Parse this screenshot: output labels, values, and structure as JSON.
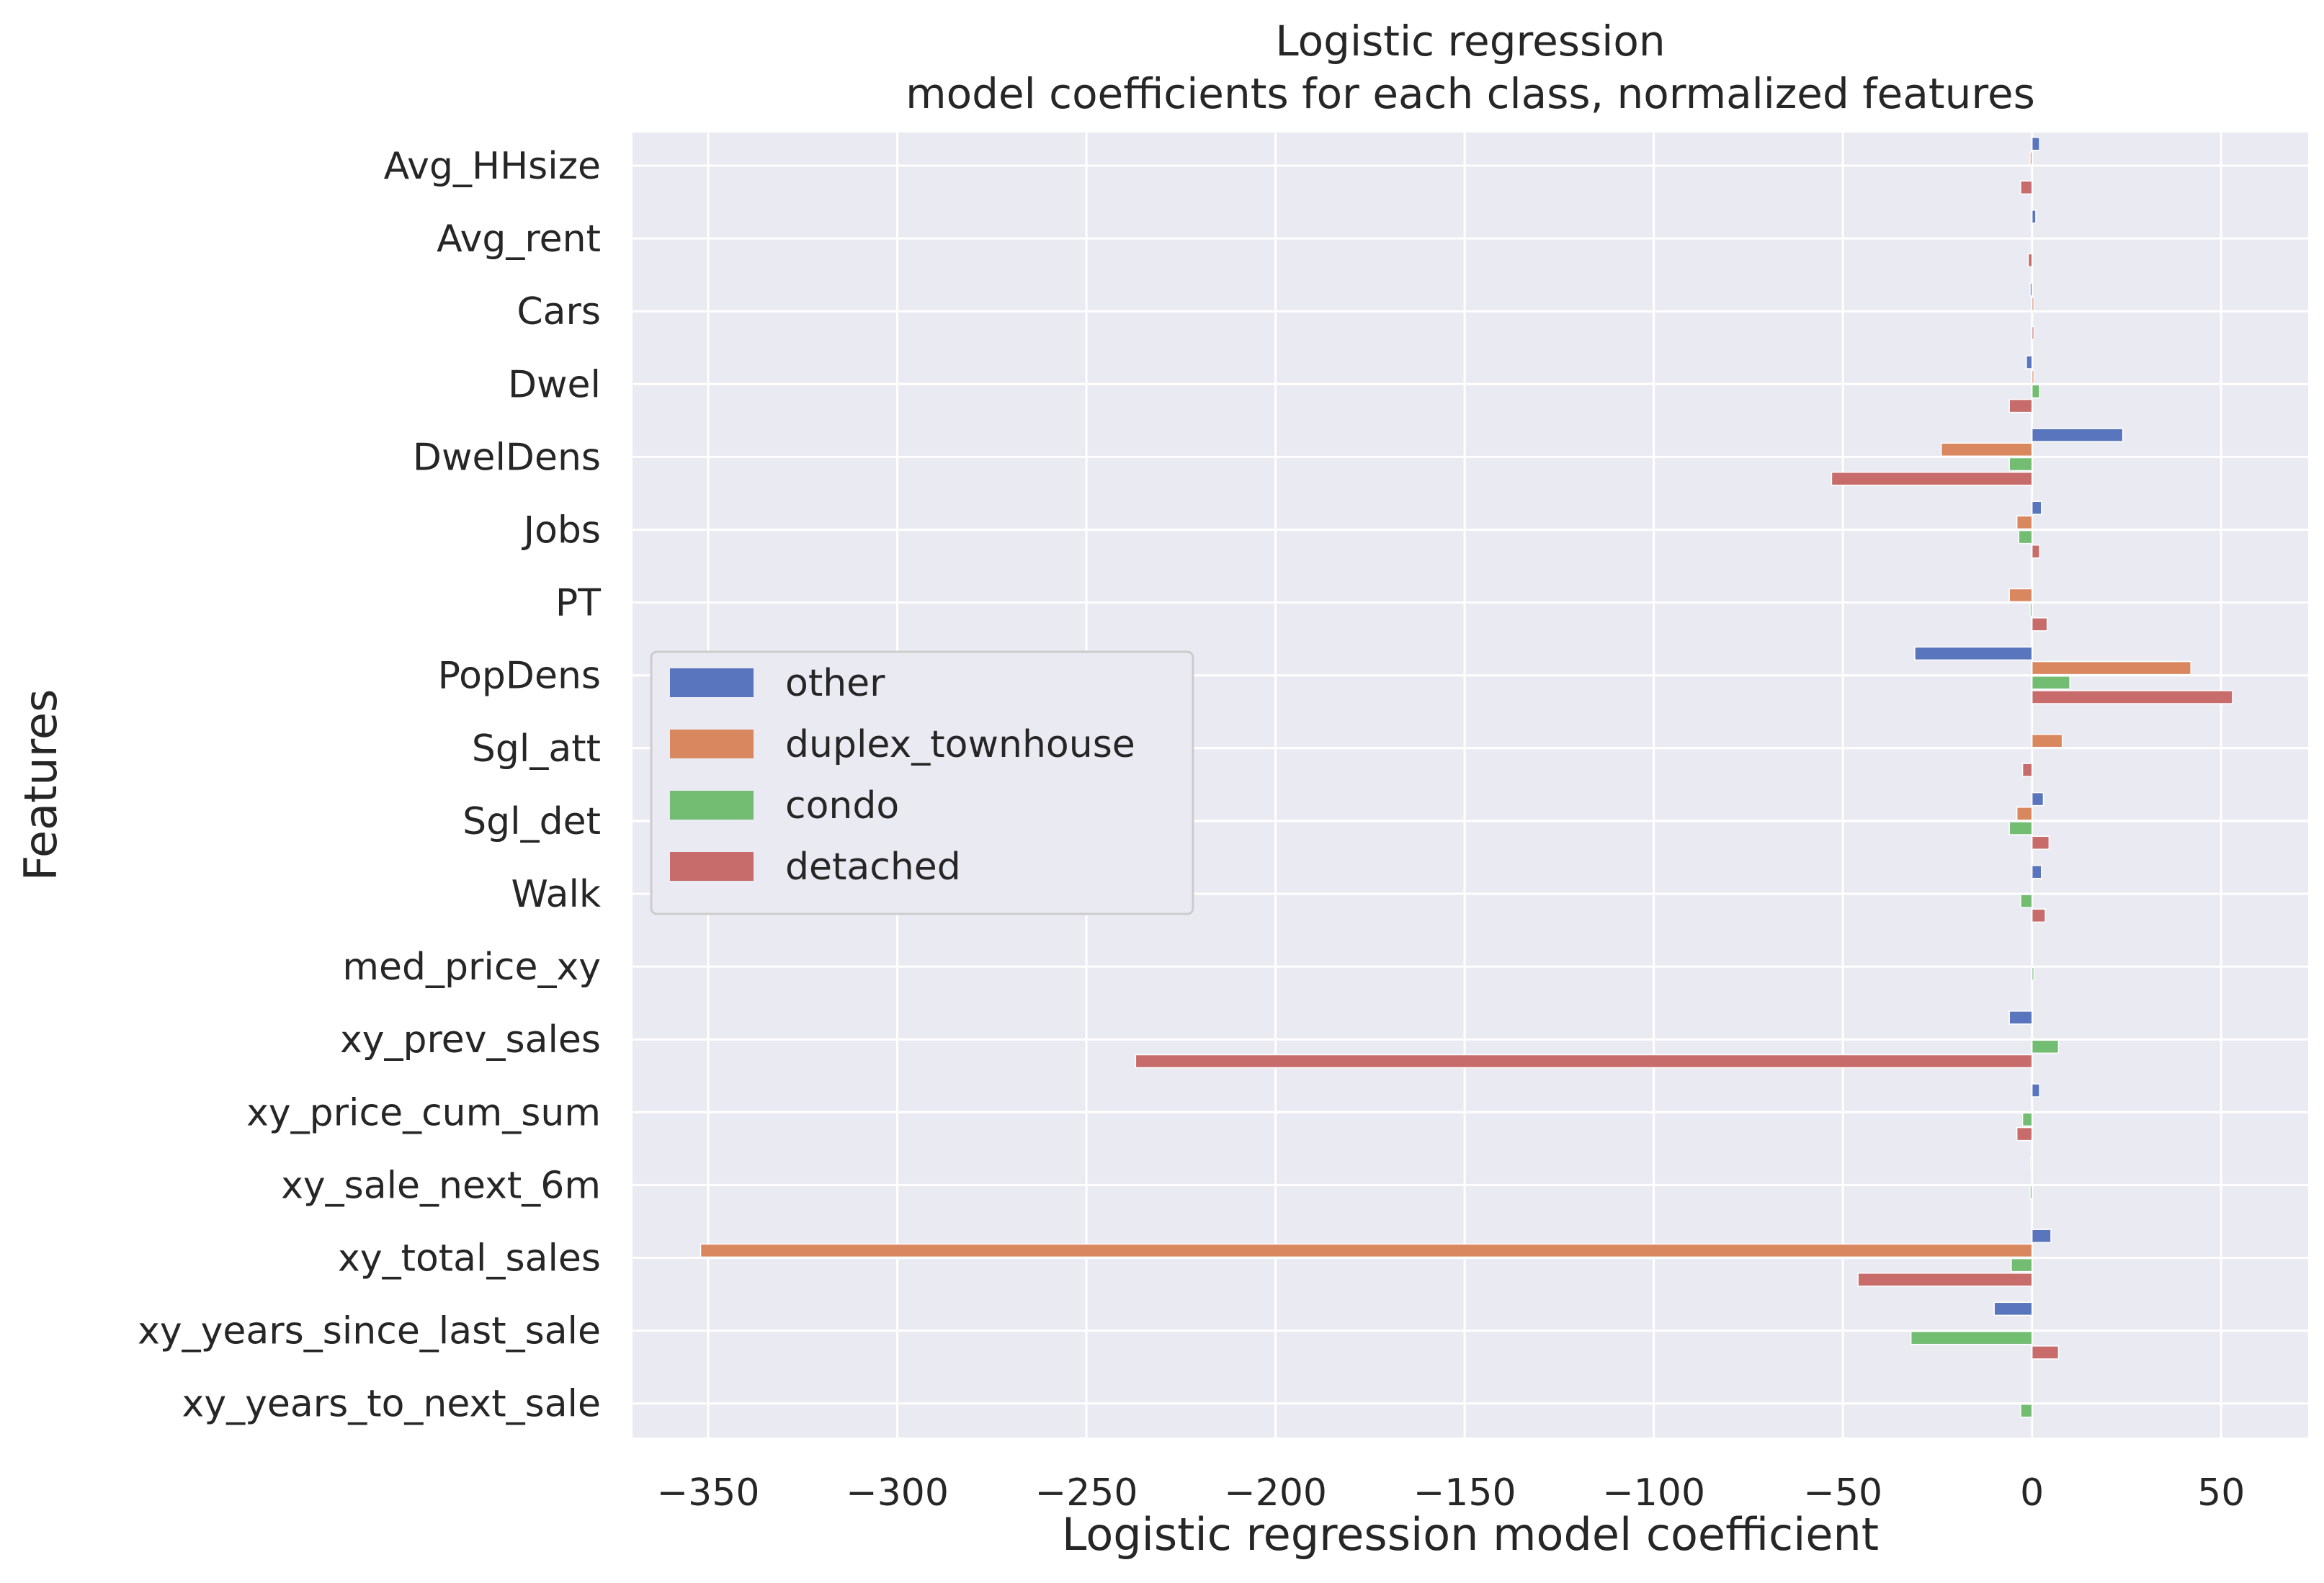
{
  "chart_data": {
    "type": "bar",
    "orientation": "horizontal",
    "title": "Logistic regression",
    "subtitle": "model coefficients for each class, normalized features",
    "xlabel": "Logistic regression model coefficient",
    "ylabel": "Features",
    "xlim": [
      -370,
      73
    ],
    "xticks": [
      -350,
      -300,
      -250,
      -200,
      -150,
      -100,
      -50,
      0,
      50
    ],
    "xtick_labels": [
      "−350",
      "−300",
      "−250",
      "−200",
      "−150",
      "−100",
      "−50",
      "0",
      "50"
    ],
    "grid": true,
    "legend_position": "center-left",
    "categories": [
      "Avg_HHsize",
      "Avg_rent",
      "Cars",
      "Dwel",
      "DwelDens",
      "Jobs",
      "PT",
      "PopDens",
      "Sgl_att",
      "Sgl_det",
      "Walk",
      "med_price_xy",
      "xy_prev_sales",
      "xy_price_cum_sum",
      "xy_sale_next_6m",
      "xy_total_sales",
      "xy_years_since_last_sale",
      "xy_years_to_next_sale"
    ],
    "series": [
      {
        "name": "other",
        "color": "#5975bd",
        "values": [
          2,
          1,
          -0.5,
          -1.5,
          24,
          2.5,
          0,
          -31,
          0,
          3,
          2.5,
          0,
          -6,
          2,
          -0.3,
          5,
          -10,
          0
        ]
      },
      {
        "name": "duplex_townhouse",
        "color": "#d9875e",
        "values": [
          -0.5,
          0,
          0.5,
          0.5,
          -24,
          -4,
          -6,
          42,
          8,
          -4,
          0,
          0,
          0,
          0,
          0,
          -352,
          0,
          0
        ]
      },
      {
        "name": "condo",
        "color": "#73bd73",
        "values": [
          0,
          0,
          0,
          2,
          -6,
          -3.5,
          -0.5,
          10,
          0,
          -6,
          -3,
          0.5,
          7,
          -2.5,
          -0.5,
          -5.5,
          -32,
          -3
        ]
      },
      {
        "name": "detached",
        "color": "#c76b6b",
        "values": [
          -3,
          -1,
          0.5,
          -6,
          -53,
          2,
          4,
          53,
          -2.5,
          4.5,
          3.5,
          0,
          -237,
          -4,
          0,
          -46,
          7,
          0
        ]
      }
    ]
  },
  "colors": {
    "plot_background": "#eaeaf2",
    "grid": "#ffffff",
    "text": "#262626"
  }
}
